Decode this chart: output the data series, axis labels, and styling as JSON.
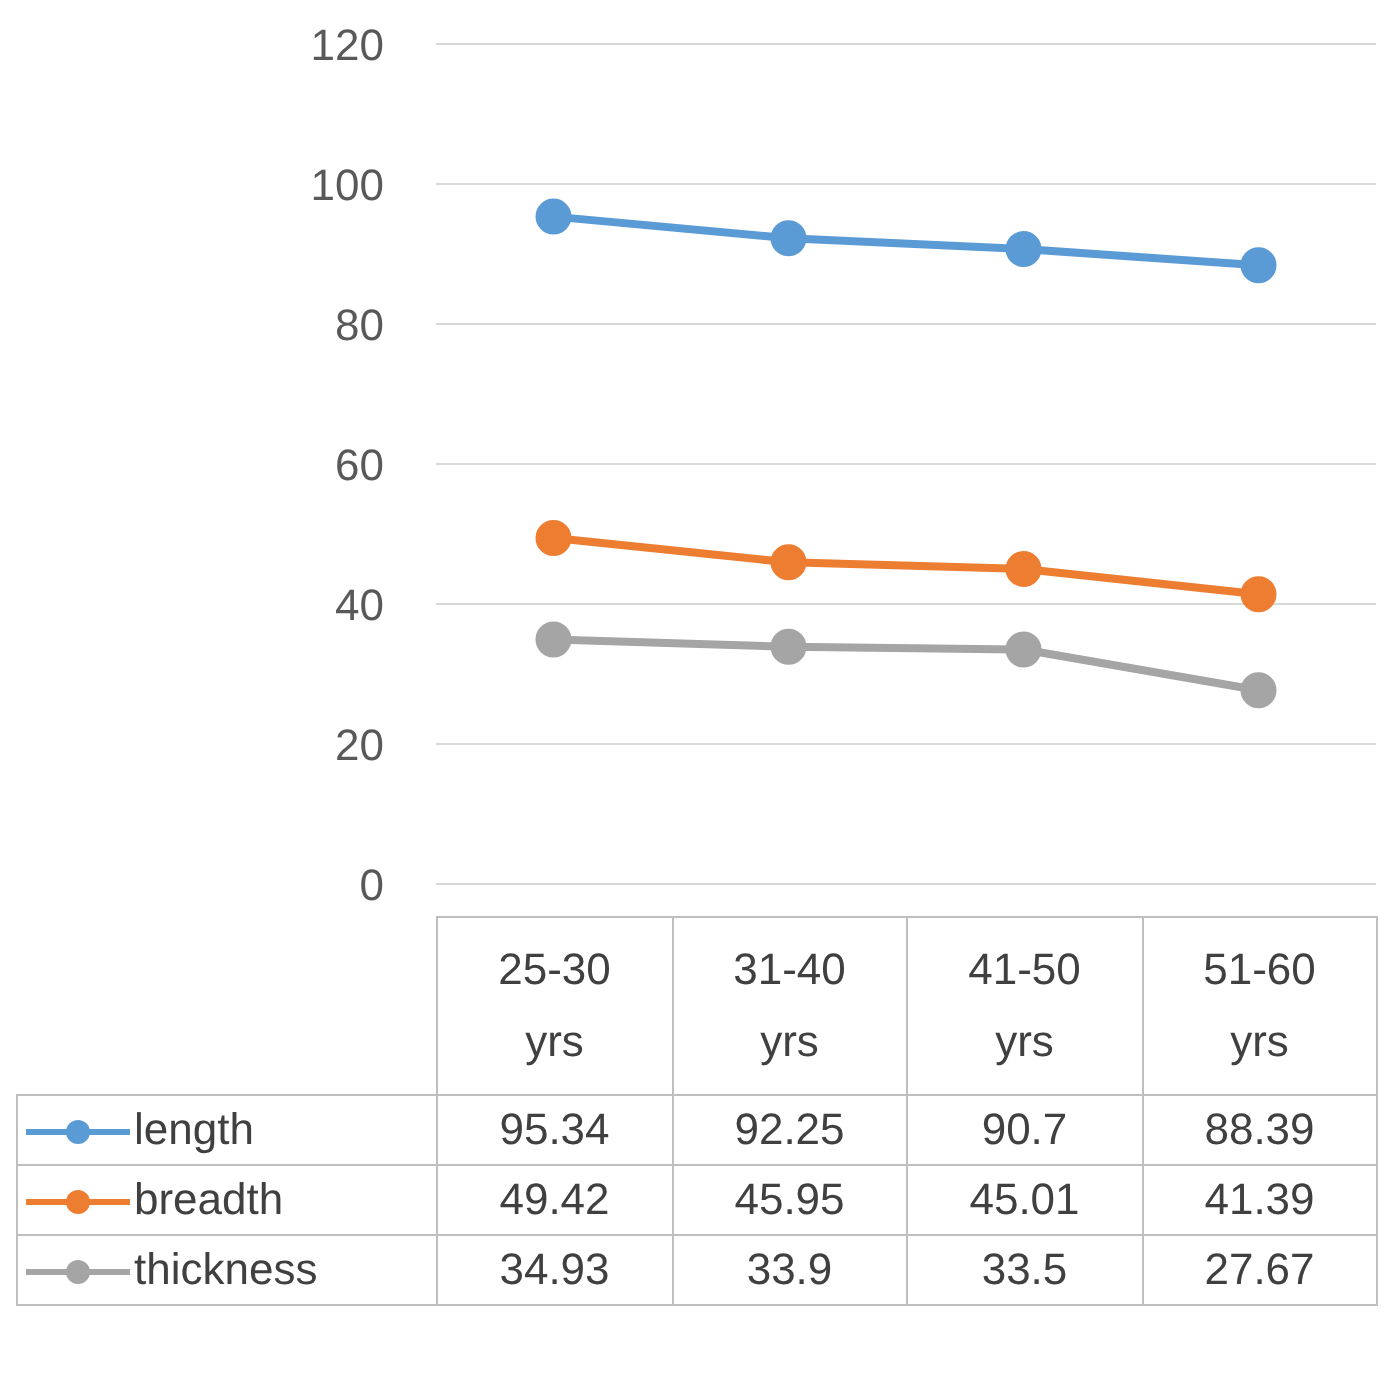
{
  "chart_data": {
    "type": "line",
    "categories": [
      "25-30 yrs",
      "31-40 yrs",
      "41-50 yrs",
      "51-60 yrs"
    ],
    "series": [
      {
        "name": "length",
        "color": "#5b9bd5",
        "values": [
          95.34,
          92.25,
          90.7,
          88.39
        ]
      },
      {
        "name": "breadth",
        "color": "#ed7d31",
        "values": [
          49.42,
          45.95,
          45.01,
          41.39
        ]
      },
      {
        "name": "thickness",
        "color": "#a5a5a5",
        "values": [
          34.93,
          33.9,
          33.5,
          27.67
        ]
      }
    ],
    "ylim": [
      0,
      120
    ],
    "yticks": [
      0,
      20,
      40,
      60,
      80,
      100,
      120
    ],
    "grid": "y",
    "marker": "circle",
    "line_style": "solid",
    "data_labels": true,
    "legend": "bottom"
  }
}
